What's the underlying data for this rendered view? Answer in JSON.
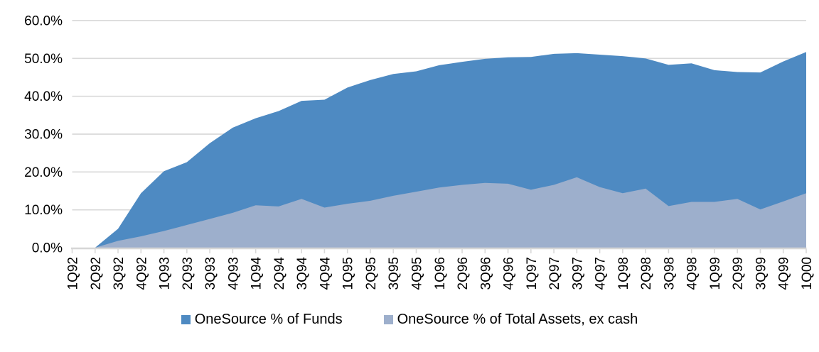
{
  "chart_data": {
    "type": "area",
    "title": "",
    "categories": [
      "1Q92",
      "2Q92",
      "3Q92",
      "4Q92",
      "1Q93",
      "2Q93",
      "3Q93",
      "4Q93",
      "1Q94",
      "2Q94",
      "3Q94",
      "4Q94",
      "1Q95",
      "2Q95",
      "3Q95",
      "4Q95",
      "1Q96",
      "2Q96",
      "3Q96",
      "4Q96",
      "1Q97",
      "2Q97",
      "3Q97",
      "4Q97",
      "1Q98",
      "2Q98",
      "3Q98",
      "4Q98",
      "1Q99",
      "2Q99",
      "3Q99",
      "4Q99",
      "1Q00"
    ],
    "series": [
      {
        "name": "OneSource % of Funds",
        "color": "#4e8ac2",
        "values": [
          0,
          0,
          5.0,
          14.4,
          20.2,
          22.6,
          27.6,
          31.7,
          34.2,
          36.1,
          38.8,
          39.1,
          42.3,
          44.3,
          45.9,
          46.6,
          48.2,
          49.1,
          49.9,
          50.3,
          50.4,
          51.2,
          51.4,
          51.0,
          50.6,
          50.0,
          48.3,
          48.7,
          46.9,
          46.4,
          46.3,
          49.2,
          51.7
        ]
      },
      {
        "name": "OneSource % of Total Assets, ex cash",
        "color": "#9dafcc",
        "values": [
          0,
          0,
          1.8,
          3.0,
          4.4,
          6.0,
          7.6,
          9.2,
          11.2,
          10.9,
          12.9,
          10.6,
          11.6,
          12.4,
          13.7,
          14.8,
          15.9,
          16.6,
          17.1,
          16.9,
          15.3,
          16.6,
          18.6,
          16.0,
          14.4,
          15.6,
          11.0,
          12.1,
          12.1,
          12.9,
          10.1,
          12.2,
          14.4
        ]
      }
    ],
    "xlabel": "",
    "ylabel": "",
    "ylim": [
      0,
      60
    ],
    "y_tick_step": 10,
    "y_tick_labels": [
      "0.0%",
      "10.0%",
      "20.0%",
      "30.0%",
      "40.0%",
      "50.0%",
      "60.0%"
    ],
    "grid": true,
    "legend_position": "bottom",
    "grid_color": "#d9d9d9",
    "axis_color": "#d6d6d6",
    "text_color": "#000000"
  }
}
